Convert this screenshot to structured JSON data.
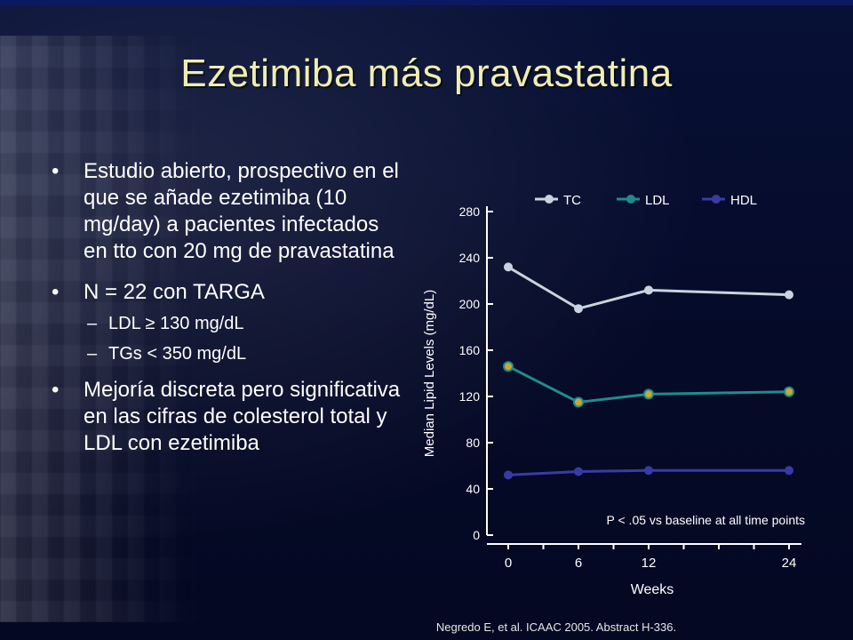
{
  "slide": {
    "title": "Ezetimiba más pravastatina",
    "citation": "Negredo E, et al. ICAAC 2005. Abstract H-336."
  },
  "bullets": [
    {
      "marker": "•",
      "text": "Estudio abierto, prospectivo en el que se añade ezetimiba (10 mg/day) a pacientes infectados en tto con 20 mg de pravastatina"
    },
    {
      "marker": "•",
      "text": "N = 22 con TARGA",
      "sub": [
        {
          "marker": "–",
          "text": "LDL ≥ 130 mg/dL"
        },
        {
          "marker": "–",
          "text": "TGs < 350 mg/dL"
        }
      ]
    },
    {
      "marker": "•",
      "text": "Mejoría discreta pero significativa en las cifras de colesterol total y LDL con ezetimiba"
    }
  ],
  "chart_data": {
    "type": "line",
    "ylabel": "Median Lipid Levels (mg/dL)",
    "xlabel": "Weeks",
    "x": [
      0,
      6,
      12,
      24
    ],
    "x_tick_labels": [
      "0",
      "6",
      "12",
      "24"
    ],
    "x_minor_ticks": [
      0,
      3,
      6,
      9,
      12,
      15,
      18,
      21,
      24
    ],
    "xlim": [
      0,
      24
    ],
    "ylim": [
      0,
      280
    ],
    "y_ticks": [
      0,
      40,
      80,
      120,
      160,
      200,
      240,
      280
    ],
    "grid": false,
    "legend_position": "top",
    "annotation": "P < .05 vs baseline at all time points",
    "series": [
      {
        "name": "TC",
        "values": [
          232,
          196,
          212,
          208
        ],
        "color": "#c8d4dc"
      },
      {
        "name": "LDL",
        "values": [
          146,
          115,
          122,
          124
        ],
        "color": "#1f8c8c",
        "marker_color": "#c8a832"
      },
      {
        "name": "HDL",
        "values": [
          52,
          55,
          56,
          56
        ],
        "color": "#3a3aa6"
      }
    ],
    "axis_color": "#ffffff",
    "text_color": "#ffffff"
  }
}
